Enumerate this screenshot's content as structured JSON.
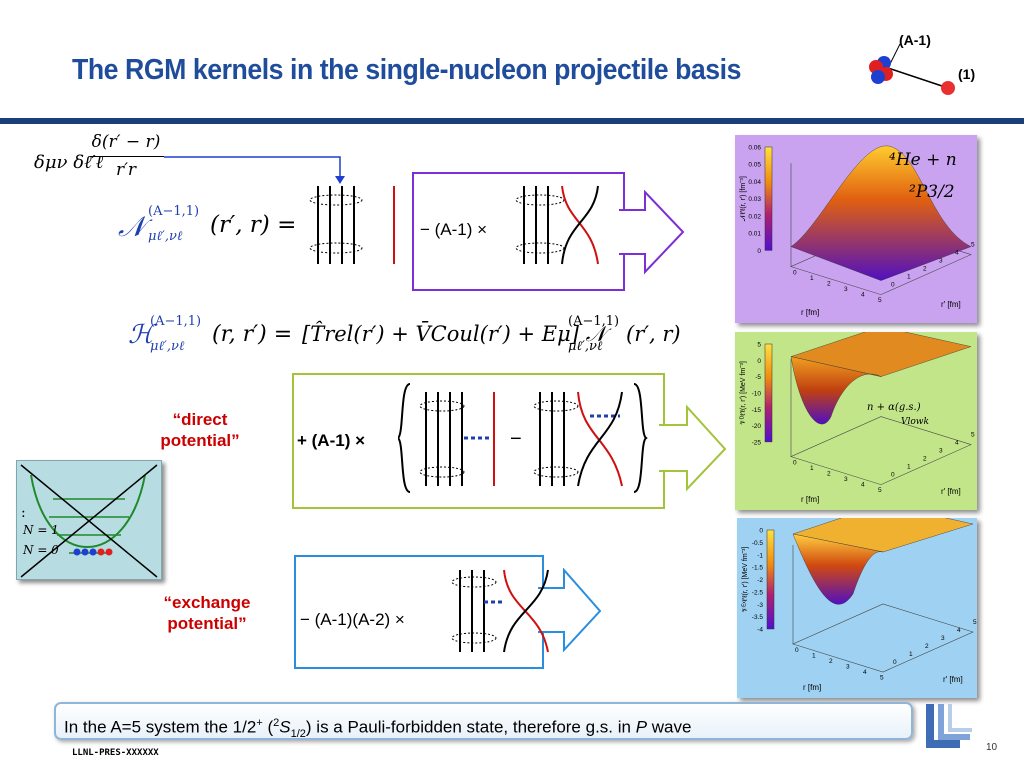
{
  "title": "The RGM kernels in the single-nucleon projectile basis",
  "cluster_labels": {
    "a_minus_1": "(A-1)",
    "one": "(1)"
  },
  "delta_formula": {
    "prefix": "δμν δℓ′ℓ",
    "numerator": "δ(r′ − r)",
    "denominator": "r′r"
  },
  "norm_kernel": {
    "symbol": "𝒩",
    "sup": "(A−1,1)",
    "sub": "μℓ′,νℓ",
    "args": "(r′, r) ="
  },
  "norm_exchange_label": "− (A-1) ×",
  "hamiltonian_kernel": {
    "symbol": "ℋ",
    "sup": "(A−1,1)",
    "sub": "μℓ′,νℓ",
    "args": "(r, r′) =",
    "rhs": "[T̂rel(r′) + V̄Coul(r′) + Eμ] 𝒩",
    "rhs_sup": "(A−1,1)",
    "rhs_sub": "μℓ′,νℓ",
    "rhs_args": "(r′, r)"
  },
  "direct_label": "+ (A-1) ×",
  "direct_minus": "−",
  "direct_potential_label": [
    "“direct",
    "potential”"
  ],
  "exchange_label": "− (A-1)(A-2) ×",
  "exchange_potential_label": [
    "“exchange",
    "potential”"
  ],
  "ho_levels": {
    "dots": ":",
    "n1": "N = 1",
    "n0": "N = 0"
  },
  "panels": [
    {
      "bg": "#c9a3f0",
      "system": "⁴He + n",
      "wave": "²P3/2",
      "zlabel": "𝒩ℓ′ℓ(r, r′) [fm⁻³]",
      "colorbar_ticks": [
        "0.06",
        "0.05",
        "0.04",
        "0.03",
        "0.02",
        "0.01",
        "0"
      ],
      "xlabel": "r [fm]",
      "ylabel": "r′ [fm]",
      "axis_ticks": [
        "0",
        "1",
        "2",
        "3",
        "4",
        "5"
      ]
    },
    {
      "bg": "#c3e58a",
      "system": "n + α(g.s.)",
      "wave": "Vlowk",
      "zlabel": "𝒱ᴰℓ′ℓ(r, r′) [MeV fm⁻³]",
      "colorbar_ticks": [
        "5",
        "0",
        "-5",
        "-10",
        "-15",
        "-20",
        "-25"
      ],
      "xlabel": "r [fm]",
      "ylabel": "r′ [fm]",
      "axis_ticks": [
        "0",
        "1",
        "2",
        "3",
        "4",
        "5"
      ]
    },
    {
      "bg": "#9fd2f2",
      "system": "",
      "wave": "",
      "zlabel": "𝒱ᴱˣℓ′ℓ(r, r′) [MeV fm⁻³]",
      "colorbar_ticks": [
        "0",
        "-0.5",
        "-1",
        "-1.5",
        "-2",
        "-2.5",
        "-3",
        "-3.5",
        "-4"
      ],
      "xlabel": "r [fm]",
      "ylabel": "r′ [fm]",
      "axis_ticks": [
        "0",
        "1",
        "2",
        "3",
        "4",
        "5"
      ]
    }
  ],
  "note": {
    "pre": "In the A=5 system the 1/2",
    "sup_plus": "+",
    "mid": " (",
    "sup2": "2",
    "s": "S",
    "sub": "1/2",
    "post": ") is a Pauli-forbidden state, therefore g.s. in ",
    "p": "P",
    "wave": " wave"
  },
  "footer": "LLNL-PRES-XXXXXX",
  "page_number": "10"
}
